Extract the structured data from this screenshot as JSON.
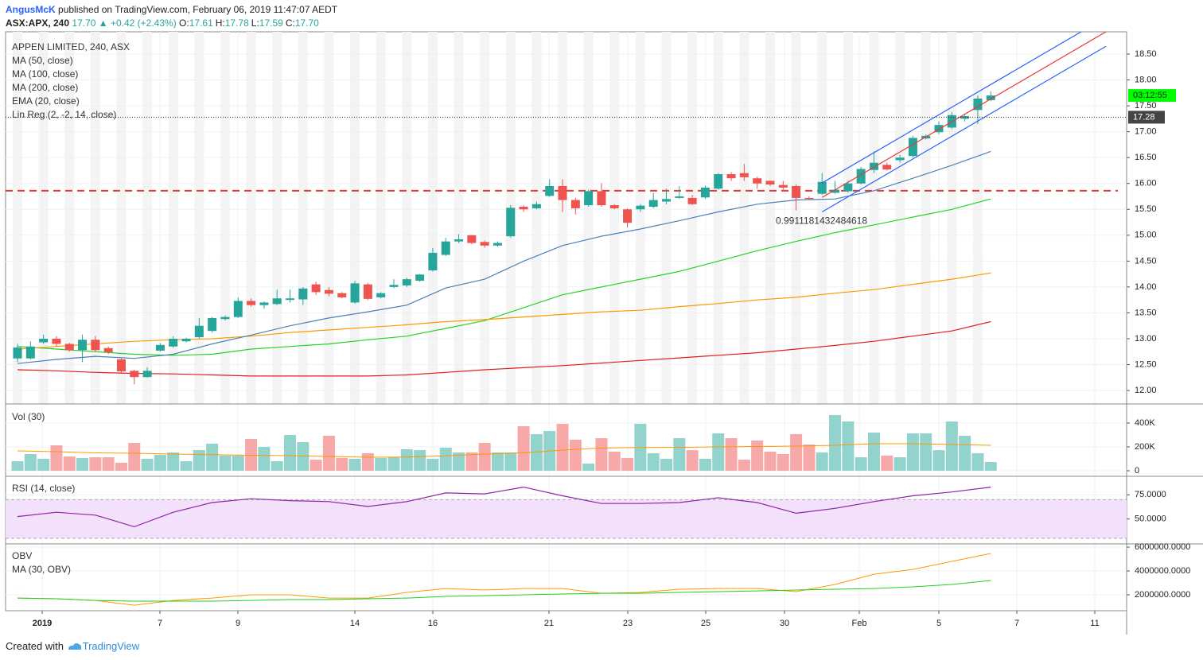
{
  "header": {
    "author": "AngusMcK",
    "published": "published on TradingView.com, February 06, 2019 11:47:07 AEDT",
    "symbol": "ASX:APX, 240",
    "last": "17.70",
    "change": "▲ +0.42 (+2.43%)",
    "ohlc": [
      {
        "label": "O:",
        "value": "17.61"
      },
      {
        "label": "H:",
        "value": "17.78"
      },
      {
        "label": "L:",
        "value": "17.59"
      },
      {
        "label": "C:",
        "value": "17.70"
      }
    ]
  },
  "x_labels": [
    "2019",
    "7",
    "9",
    "14",
    "16",
    "21",
    "23",
    "25",
    "30",
    "Feb",
    "5",
    "7",
    "11"
  ],
  "footer": {
    "created": "Created with",
    "brand": "TradingView"
  },
  "chart_data": [
    {
      "type": "candlestick",
      "title": "APPEN LIMITED, 240, ASX",
      "up_color": "#26a69a",
      "down_color": "#ef5350",
      "grid": true,
      "open": [
        12.62,
        12.62,
        12.93,
        13.0,
        12.9,
        12.78,
        12.98,
        12.82,
        12.6,
        12.38,
        12.26,
        12.77,
        12.85,
        12.95,
        13.03,
        13.15,
        13.38,
        13.42,
        13.73,
        13.65,
        13.67,
        13.75,
        13.76,
        14.05,
        13.94,
        13.88,
        13.7,
        14.05,
        13.8,
        14.0,
        14.03,
        14.12,
        14.32,
        14.62,
        14.88,
        15.0,
        14.87,
        14.8,
        14.98,
        15.55,
        15.52,
        15.76,
        15.95,
        15.68,
        15.58,
        15.85,
        15.58,
        15.5,
        15.5,
        15.55,
        15.65,
        15.72,
        15.72,
        15.73,
        15.9,
        16.18,
        16.2,
        16.1,
        16.05,
        15.97,
        15.95,
        15.72,
        15.8,
        15.82,
        15.85,
        16.0,
        16.26,
        16.36,
        16.45,
        16.53,
        16.87,
        16.99,
        17.08,
        17.25,
        17.42,
        17.61
      ],
      "high": [
        12.9,
        12.95,
        13.08,
        13.05,
        12.92,
        13.08,
        13.05,
        12.85,
        12.62,
        12.4,
        12.45,
        12.92,
        13.05,
        13.02,
        13.4,
        13.42,
        13.45,
        13.8,
        13.78,
        13.72,
        13.95,
        13.95,
        14.0,
        14.1,
        14.0,
        13.9,
        14.12,
        14.08,
        13.9,
        14.15,
        14.18,
        14.25,
        14.75,
        14.95,
        15.02,
        15.0,
        14.9,
        14.88,
        15.58,
        15.58,
        15.65,
        16.08,
        16.08,
        15.72,
        15.88,
        16.0,
        15.6,
        15.52,
        15.6,
        15.82,
        15.9,
        15.95,
        15.78,
        15.96,
        16.2,
        16.22,
        16.38,
        16.13,
        16.06,
        16.05,
        15.98,
        15.75,
        16.2,
        16.05,
        16.05,
        16.32,
        16.62,
        16.4,
        16.55,
        16.92,
        16.95,
        17.2,
        17.38,
        17.35,
        17.7,
        17.78
      ],
      "low": [
        12.55,
        12.6,
        12.9,
        12.85,
        12.75,
        12.55,
        12.75,
        12.7,
        12.35,
        12.12,
        12.25,
        12.75,
        12.83,
        12.93,
        13.0,
        13.12,
        13.35,
        13.4,
        13.62,
        13.58,
        13.65,
        13.7,
        13.65,
        13.85,
        13.82,
        13.78,
        13.68,
        13.75,
        13.78,
        13.98,
        14.0,
        14.1,
        14.3,
        14.6,
        14.85,
        14.83,
        14.76,
        14.78,
        14.95,
        15.45,
        15.5,
        15.74,
        15.45,
        15.4,
        15.55,
        15.55,
        15.5,
        15.15,
        15.45,
        15.52,
        15.6,
        15.7,
        15.58,
        15.7,
        15.88,
        16.05,
        16.05,
        15.9,
        15.95,
        15.85,
        15.48,
        15.68,
        15.78,
        15.8,
        15.82,
        15.98,
        16.2,
        16.25,
        16.4,
        16.5,
        16.85,
        16.95,
        17.05,
        17.2,
        17.15,
        17.59
      ],
      "close": [
        12.83,
        12.85,
        13.0,
        12.9,
        12.78,
        12.98,
        12.78,
        12.74,
        12.37,
        12.26,
        12.38,
        12.88,
        13.0,
        13.0,
        13.25,
        13.4,
        13.42,
        13.73,
        13.65,
        13.7,
        13.78,
        13.78,
        13.97,
        13.9,
        13.87,
        13.8,
        14.07,
        13.77,
        13.88,
        14.04,
        14.15,
        14.24,
        14.66,
        14.88,
        14.92,
        14.85,
        14.8,
        14.85,
        15.53,
        15.5,
        15.6,
        15.95,
        15.68,
        15.52,
        15.85,
        15.58,
        15.52,
        15.24,
        15.57,
        15.68,
        15.7,
        15.75,
        15.6,
        15.92,
        16.18,
        16.1,
        16.12,
        16.0,
        15.98,
        15.92,
        15.72,
        15.7,
        16.03,
        15.88,
        16.0,
        16.28,
        16.4,
        16.27,
        16.5,
        16.88,
        16.92,
        17.13,
        17.32,
        17.3,
        17.64,
        17.7
      ],
      "series": [
        {
          "name": "MA (50, close)",
          "color": "#22d622",
          "values": [
            12.85,
            12.8,
            12.75,
            12.7,
            12.68,
            12.7,
            12.8,
            12.85,
            12.9,
            12.98,
            13.05,
            13.2,
            13.35,
            13.6,
            13.85,
            14.0,
            14.15,
            14.3,
            14.5,
            14.7,
            14.88,
            15.05,
            15.2,
            15.35,
            15.5,
            15.7
          ]
        },
        {
          "name": "MA (100, close)",
          "color": "#ff9800",
          "values": [
            12.8,
            12.85,
            12.9,
            12.95,
            12.98,
            13.0,
            13.05,
            13.12,
            13.17,
            13.22,
            13.27,
            13.33,
            13.37,
            13.42,
            13.47,
            13.52,
            13.55,
            13.62,
            13.68,
            13.75,
            13.8,
            13.88,
            13.95,
            14.05,
            14.15,
            14.27
          ]
        },
        {
          "name": "MA (200, close)",
          "color": "#e31c1c",
          "values": [
            12.4,
            12.38,
            12.35,
            12.33,
            12.32,
            12.3,
            12.28,
            12.28,
            12.28,
            12.28,
            12.3,
            12.35,
            12.4,
            12.44,
            12.48,
            12.53,
            12.58,
            12.63,
            12.68,
            12.73,
            12.8,
            12.87,
            12.95,
            13.05,
            13.15,
            13.33
          ]
        },
        {
          "name": "EMA (20, close)",
          "color": "#4a80b8",
          "values": [
            12.52,
            12.6,
            12.66,
            12.62,
            12.7,
            12.9,
            13.07,
            13.25,
            13.4,
            13.52,
            13.65,
            13.98,
            14.15,
            14.5,
            14.8,
            14.98,
            15.12,
            15.28,
            15.45,
            15.6,
            15.68,
            15.7,
            15.86,
            16.1,
            16.35,
            16.62
          ]
        }
      ],
      "regression": {
        "name": "Lin Reg (2, -2, 14, close)",
        "start": 15.73,
        "end": 18.93,
        "deviation": 0.28,
        "r": 0.9911181432484618,
        "color": "#e53935",
        "band_color": "#2962ff"
      },
      "horizontal_line": {
        "value": 15.86,
        "color": "#e53935"
      },
      "price_line": 17.28,
      "countdown": "03:12:55",
      "ylim": [
        11.74,
        18.93
      ],
      "yticks": [
        {
          "value": 12,
          "label": "12.00"
        },
        {
          "value": 12.5,
          "label": "12.50"
        },
        {
          "value": 13,
          "label": "13.00"
        },
        {
          "value": 13.5,
          "label": "13.50"
        },
        {
          "value": 14,
          "label": "14.00"
        },
        {
          "value": 14.5,
          "label": "14.50"
        },
        {
          "value": 15,
          "label": "15.00"
        },
        {
          "value": 15.5,
          "label": "15.50"
        },
        {
          "value": 16,
          "label": "16.00"
        },
        {
          "value": 16.5,
          "label": "16.50"
        },
        {
          "value": 17,
          "label": "17.00"
        },
        {
          "value": 17.5,
          "label": "17.50"
        },
        {
          "value": 18,
          "label": "18.00"
        },
        {
          "value": 18.5,
          "label": "18.50"
        }
      ]
    },
    {
      "type": "bar",
      "title": "Vol (30)",
      "grid": true,
      "values": [
        80000,
        140000,
        100000,
        213000,
        120000,
        107000,
        113000,
        113000,
        67000,
        233000,
        100000,
        133000,
        153000,
        80000,
        173000,
        227000,
        127000,
        127000,
        267000,
        200000,
        80000,
        300000,
        240000,
        93000,
        293000,
        107000,
        100000,
        147000,
        107000,
        113000,
        180000,
        173000,
        100000,
        193000,
        153000,
        153000,
        233000,
        153000,
        153000,
        373000,
        307000,
        333000,
        393000,
        260000,
        60000,
        273000,
        160000,
        107000,
        393000,
        147000,
        100000,
        273000,
        173000,
        100000,
        313000,
        273000,
        93000,
        253000,
        160000,
        140000,
        307000,
        220000,
        153000,
        467000,
        413000,
        113000,
        320000,
        127000,
        113000,
        313000,
        313000,
        173000,
        413000,
        293000,
        147000,
        73000
      ],
      "ma_color": "#ff9800",
      "ma_values": [
        167000,
        160000,
        150000,
        147000,
        140000,
        135000,
        130000,
        127000,
        120000,
        113000,
        115000,
        125000,
        140000,
        150000,
        173000,
        190000,
        195000,
        197000,
        200000,
        203000,
        207000,
        213000,
        227000,
        227000,
        220000,
        213000
      ],
      "ylim": [
        -40000,
        560000
      ],
      "yticks": [
        0,
        {
          "value": 200000,
          "label": "200K"
        },
        {
          "value": 400000,
          "label": "400K"
        }
      ]
    },
    {
      "type": "line",
      "title": "RSI (14, close)",
      "grid": true,
      "color": "#8e24aa",
      "band": [
        30,
        70
      ],
      "band_color": "#f3e0fa",
      "values": [
        52.5,
        57,
        54,
        42,
        57,
        67,
        71,
        69,
        68,
        63,
        68,
        77,
        76,
        83,
        74,
        66,
        66,
        67,
        72,
        67,
        56,
        61,
        68,
        74,
        78,
        83
      ],
      "ylim": [
        24.2,
        94.2
      ],
      "yticks": [
        {
          "value": 50,
          "label": "50.0000"
        },
        {
          "value": 75,
          "label": "75.0000"
        }
      ]
    },
    {
      "type": "line",
      "grid": true,
      "series": [
        {
          "name": "OBV",
          "color": "#ff9800",
          "values": [
            1730000,
            1670000,
            1530000,
            1130000,
            1530000,
            1730000,
            2000000,
            2000000,
            1730000,
            1730000,
            2200000,
            2530000,
            2400000,
            2530000,
            2530000,
            2130000,
            2200000,
            2470000,
            2530000,
            2530000,
            2270000,
            2870000,
            3730000,
            4130000,
            4800000,
            5470000
          ]
        },
        {
          "name": "MA (30, OBV)",
          "color": "#1fd11f",
          "values": [
            1730000,
            1670000,
            1530000,
            1470000,
            1470000,
            1470000,
            1530000,
            1600000,
            1600000,
            1670000,
            1730000,
            1870000,
            1930000,
            2000000,
            2070000,
            2130000,
            2130000,
            2200000,
            2270000,
            2330000,
            2400000,
            2470000,
            2530000,
            2670000,
            2870000,
            3200000
          ]
        }
      ],
      "ylim": [
        670000,
        6270000
      ],
      "yticks": [
        {
          "value": 2000000,
          "label": "2000000.0000"
        },
        {
          "value": 4000000,
          "label": "4000000.0000"
        },
        {
          "value": 6000000,
          "label": "6000000.0000"
        }
      ]
    }
  ]
}
